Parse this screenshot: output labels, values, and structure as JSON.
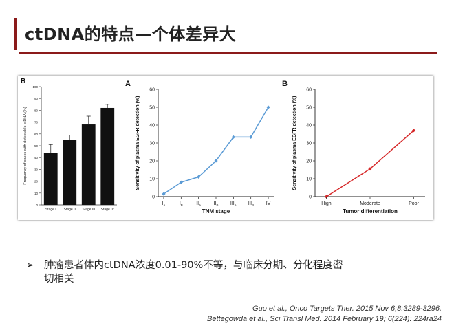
{
  "slide": {
    "title": "ctDNA的特点—个体差异大",
    "bullet": "肿瘤患者体内ctDNA浓度0.01-90%不等，与临床分期、分化程度密切相关",
    "bullet_line1": "肿瘤患者体内ctDNA浓度0.01-90%不等，与临床分期、分化程度密",
    "bullet_line2": "切相关",
    "references": [
      "Guo et al., Onco Targets Ther. 2015 Nov 6;8:3289-3296.",
      "Bettegowda et al., Sci Transl Med. 2014 February 19; 6(224): 224ra24"
    ]
  },
  "chart_data": [
    {
      "type": "bar",
      "panel_label": "B",
      "categories": [
        "Stage I",
        "Stage II",
        "Stage III",
        "Stage IV"
      ],
      "values": [
        44,
        55,
        68,
        82
      ],
      "errors": [
        7,
        4,
        7,
        3
      ],
      "ylabel": "Frequency of cases with detectable ctDNA (%)",
      "ylim": [
        0,
        100
      ],
      "yticks": [
        0,
        10,
        20,
        30,
        40,
        50,
        60,
        70,
        80,
        90,
        100
      ],
      "color": "#111111"
    },
    {
      "type": "line",
      "panel_label": "A",
      "categories": [
        {
          "main": "I",
          "sub": "A"
        },
        {
          "main": "I",
          "sub": "B"
        },
        {
          "main": "II",
          "sub": "A"
        },
        {
          "main": "II",
          "sub": "B"
        },
        {
          "main": "III",
          "sub": "A"
        },
        {
          "main": "III",
          "sub": "B"
        },
        {
          "main": "IV",
          "sub": ""
        }
      ],
      "values": [
        1.5,
        8,
        11,
        20,
        33.3,
        33.3,
        50
      ],
      "ylabel": "Sensitivity of plasma EGFR detection (%)",
      "xlabel": "TNM stage",
      "ylim": [
        0,
        60
      ],
      "yticks": [
        0,
        10,
        20,
        30,
        40,
        50,
        60
      ],
      "color": "#5b9bd5"
    },
    {
      "type": "line",
      "panel_label": "B",
      "categories": [
        "High",
        "Moderate",
        "Poor"
      ],
      "values": [
        0,
        15.5,
        37
      ],
      "ylabel": "Sensitivity of plasma EGFR detection (%)",
      "xlabel": "Tumor differentiation",
      "ylim": [
        0,
        60
      ],
      "yticks": [
        0,
        10,
        20,
        30,
        40,
        50,
        60
      ],
      "color": "#d62728"
    }
  ]
}
